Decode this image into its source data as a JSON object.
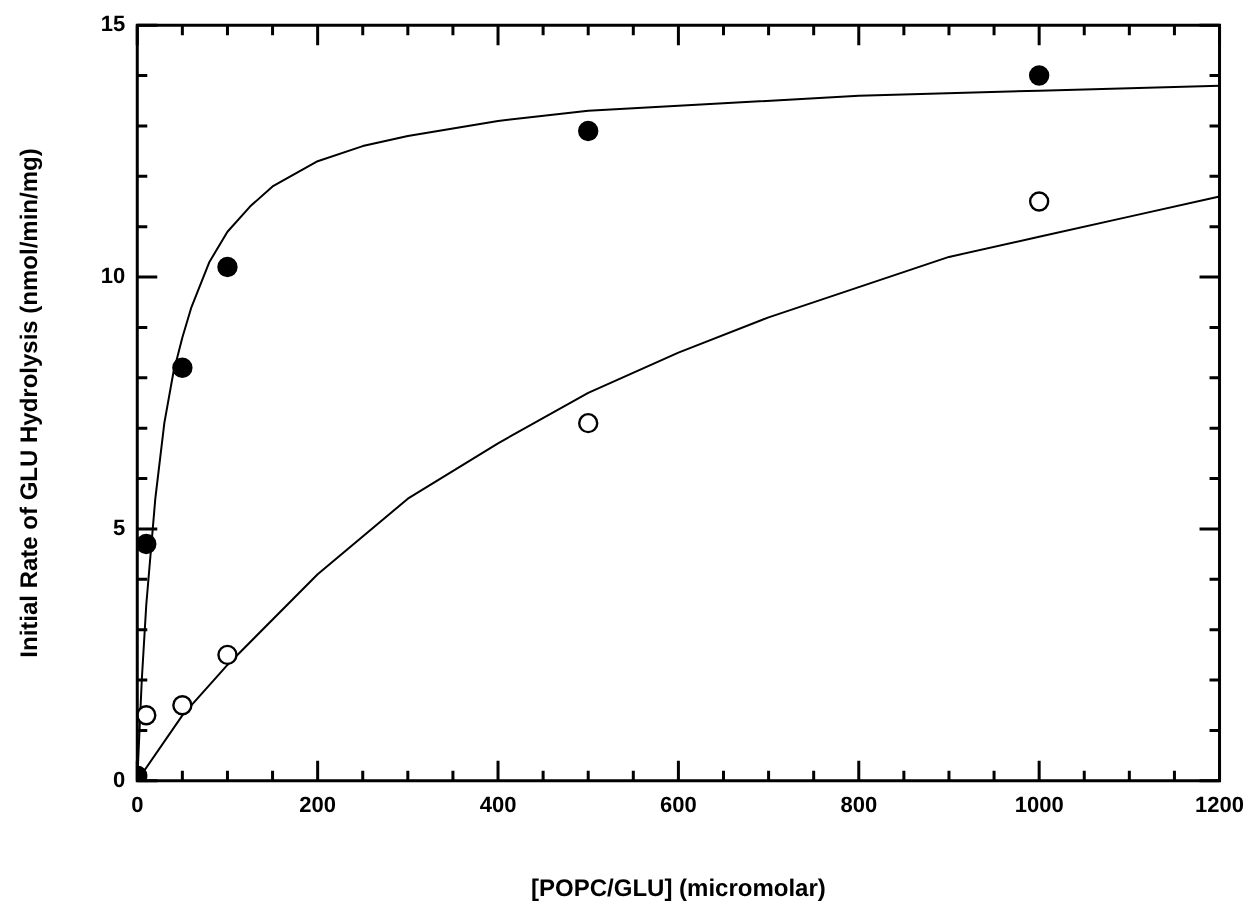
{
  "chart_data": {
    "type": "scatter",
    "xlabel": "[POPC/GLU] (micromolar)",
    "ylabel": "Initial Rate of GLU Hydrolysis (nmol/min/mg)",
    "xlim": [
      0,
      1200
    ],
    "ylim": [
      0,
      15
    ],
    "xticks": [
      0,
      {
        "value": 50,
        "label": null
      },
      {
        "value": 100,
        "label": null
      },
      {
        "value": 150,
        "label": null
      },
      200,
      {
        "value": 250,
        "label": null
      },
      {
        "value": 300,
        "label": null
      },
      {
        "value": 350,
        "label": null
      },
      400,
      {
        "value": 450,
        "label": null
      },
      {
        "value": 500,
        "label": null
      },
      {
        "value": 550,
        "label": null
      },
      600,
      {
        "value": 650,
        "label": null
      },
      {
        "value": 700,
        "label": null
      },
      {
        "value": 750,
        "label": null
      },
      800,
      {
        "value": 850,
        "label": null
      },
      {
        "value": 900,
        "label": null
      },
      {
        "value": 950,
        "label": null
      },
      1000,
      {
        "value": 1050,
        "label": null
      },
      {
        "value": 1100,
        "label": null
      },
      {
        "value": 1150,
        "label": null
      },
      1200
    ],
    "yticks": [
      0,
      {
        "value": 1,
        "label": null
      },
      {
        "value": 2,
        "label": null
      },
      {
        "value": 3,
        "label": null
      },
      {
        "value": 4,
        "label": null
      },
      5,
      {
        "value": 6,
        "label": null
      },
      {
        "value": 7,
        "label": null
      },
      {
        "value": 8,
        "label": null
      },
      {
        "value": 9,
        "label": null
      },
      10,
      {
        "value": 11,
        "label": null
      },
      {
        "value": 12,
        "label": null
      },
      {
        "value": 13,
        "label": null
      },
      {
        "value": 14,
        "label": null
      },
      15
    ],
    "grid": false,
    "legend": false,
    "series": [
      {
        "type": "line",
        "color": "#000000",
        "marker": "none",
        "x": [
          0,
          5,
          10,
          20,
          30,
          40,
          50,
          60,
          80,
          100,
          125,
          150,
          200,
          250,
          300,
          400,
          500,
          600,
          800,
          1000,
          1200
        ],
        "values": [
          0,
          2.0,
          3.5,
          5.6,
          7.1,
          8.1,
          8.8,
          9.4,
          10.3,
          10.9,
          11.4,
          11.8,
          12.3,
          12.6,
          12.8,
          13.1,
          13.3,
          13.4,
          13.6,
          13.7,
          13.8
        ]
      },
      {
        "type": "line",
        "color": "#000000",
        "marker": "none",
        "x": [
          0,
          50,
          100,
          200,
          300,
          400,
          500,
          600,
          700,
          800,
          900,
          1000,
          1100,
          1200
        ],
        "values": [
          0,
          1.3,
          2.3,
          4.1,
          5.6,
          6.7,
          7.7,
          8.5,
          9.2,
          9.8,
          10.4,
          10.8,
          11.2,
          11.6
        ]
      },
      {
        "color": "#000000",
        "marker": "circle",
        "x": [
          0,
          10,
          50,
          100,
          500,
          1000
        ],
        "values": [
          0.1,
          4.7,
          8.2,
          10.2,
          12.9,
          14.0
        ]
      },
      {
        "color": "#ffffff",
        "marker": "circle",
        "x": [
          10,
          50,
          100,
          500,
          1000
        ],
        "values": [
          1.3,
          1.5,
          2.5,
          7.1,
          11.5
        ]
      }
    ]
  }
}
